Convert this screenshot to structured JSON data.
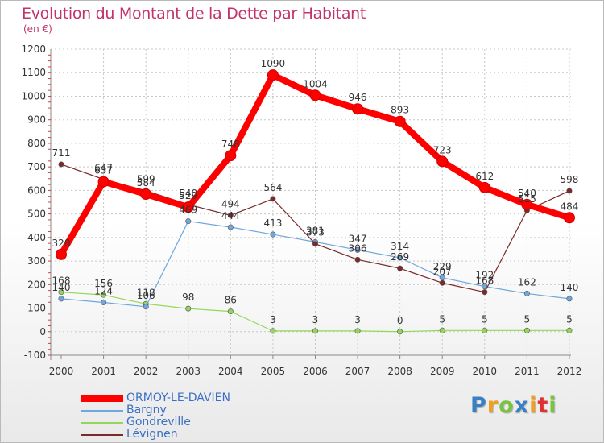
{
  "chart": {
    "title": "Evolution du Montant de la Dette par Habitant",
    "subtitle": "(en €)"
  },
  "brand": {
    "letters": [
      "P",
      "r",
      "o",
      "x",
      "i",
      "t",
      "i"
    ],
    "colors": [
      "#3a7fc4",
      "#f0a020",
      "#7cc242",
      "#3a7fc4",
      "#f0a020",
      "#e03030",
      "#7cc242"
    ]
  },
  "chart_data": {
    "type": "line",
    "title": "Evolution du Montant de la Dette par Habitant",
    "subtitle": "(en €)",
    "xlabel": "",
    "ylabel": "",
    "x": [
      "2000",
      "2001",
      "2002",
      "2003",
      "2004",
      "2005",
      "2006",
      "2007",
      "2008",
      "2009",
      "2010",
      "2011",
      "2012"
    ],
    "ylim": [
      -100,
      1200
    ],
    "yticks": [
      -100,
      0,
      100,
      200,
      300,
      400,
      500,
      600,
      700,
      800,
      900,
      1000,
      1100,
      1200
    ],
    "grid": true,
    "legend_position": "bottom-left",
    "series": [
      {
        "name": "ORMOY-LE-DAVIEN",
        "color": "#ff0000",
        "values": [
          328,
          637,
          584,
          529,
          748,
          1090,
          1004,
          946,
          893,
          723,
          612,
          540,
          484
        ],
        "labels": [
          "328",
          "637",
          "584",
          "529",
          "748",
          "1090",
          "1004",
          "946",
          "893",
          "723",
          "612",
          "540",
          "484"
        ]
      },
      {
        "name": "Bargny",
        "color": "#6fa8dc",
        "values": [
          140,
          124,
          106,
          469,
          444,
          413,
          381,
          347,
          314,
          229,
          192,
          162,
          140
        ],
        "labels": [
          "140",
          "124",
          "106",
          "469",
          "444",
          "413",
          "381",
          "347",
          "314",
          "229",
          "192",
          "162",
          "140"
        ]
      },
      {
        "name": "Gondreville",
        "color": "#93d75a",
        "values": [
          168,
          156,
          118,
          98,
          86,
          3,
          3,
          3,
          0,
          5,
          5,
          5,
          5
        ],
        "labels": [
          "168",
          "156",
          "118",
          "98",
          "86",
          "3",
          "3",
          "3",
          "0",
          "5",
          "5",
          "5",
          "5"
        ]
      },
      {
        "name": "Lévignen",
        "color": "#7a2a2a",
        "values": [
          711,
          647,
          599,
          540,
          494,
          564,
          373,
          306,
          269,
          207,
          168,
          515,
          598
        ],
        "labels": [
          "711",
          "647",
          "599",
          "540",
          "494",
          "564",
          "373",
          "306",
          "269",
          "207",
          "168",
          "515",
          "598"
        ]
      }
    ]
  }
}
